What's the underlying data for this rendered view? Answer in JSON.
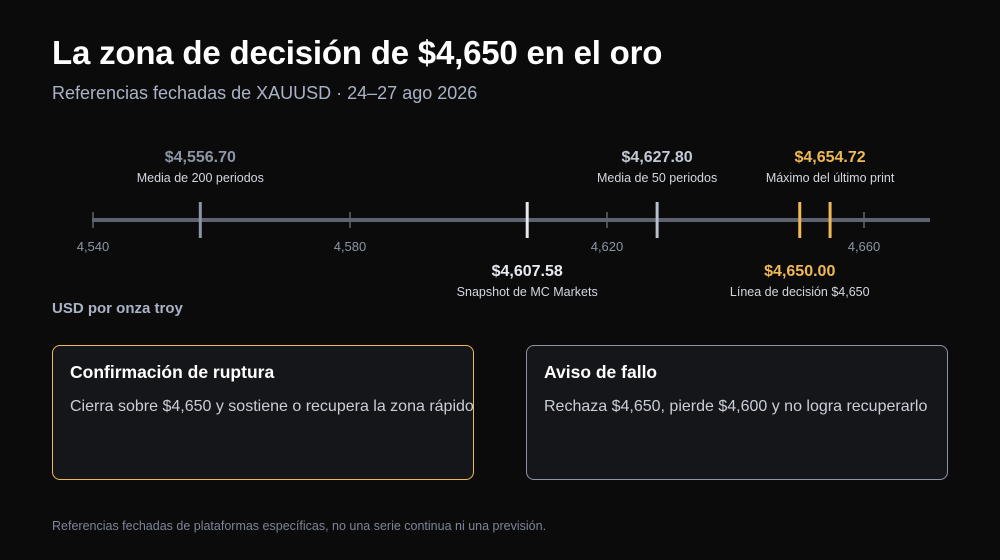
{
  "header": {
    "title": "La zona de decisión de $4,650 en el oro",
    "subtitle": "Referencias fechadas de XAUUSD · 24–27 ago 2026"
  },
  "chart_data": {
    "type": "number-line",
    "xlim": [
      4540,
      4665
    ],
    "ticks": [
      4540,
      4580,
      4620,
      4660
    ],
    "tick_labels": [
      "4,540",
      "4,580",
      "4,620",
      "4,660"
    ],
    "unit_label": "USD por onza troy",
    "markers": [
      {
        "value": 4556.7,
        "value_label": "$4,556.70",
        "name": "Media de 200 periodos",
        "label_position": "above",
        "color": "#8d95a4"
      },
      {
        "value": 4607.58,
        "value_label": "$4,607.58",
        "name": "Snapshot de MC Markets",
        "label_position": "below",
        "color": "#e4e8ef"
      },
      {
        "value": 4627.8,
        "value_label": "$4,627.80",
        "name": "Media de 50 periodos",
        "label_position": "above",
        "color": "#b9c0cd"
      },
      {
        "value": 4650.0,
        "value_label": "$4,650.00",
        "name": "Línea de decisión $4,650",
        "label_position": "below",
        "color": "#f0b955"
      },
      {
        "value": 4654.72,
        "value_label": "$4,654.72",
        "name": "Máximo del último print",
        "label_position": "above",
        "color": "#f0b955"
      }
    ],
    "colors": {
      "axis": "#5d6470",
      "tick_label": "#8d95a4",
      "accent": "#f0b955"
    }
  },
  "cards": [
    {
      "title": "Confirmación de ruptura",
      "text": "Cierra sobre $4,650 y sostiene o recupera la zona rápido",
      "accent": "#f0b955"
    },
    {
      "title": "Aviso de fallo",
      "text": "Rechaza $4,650, pierde $4,600 y no logra recuperarlo",
      "accent": "#8d95a4"
    }
  ],
  "footer": "Referencias fechadas de plataformas específicas, no una serie continua ni una previsión."
}
